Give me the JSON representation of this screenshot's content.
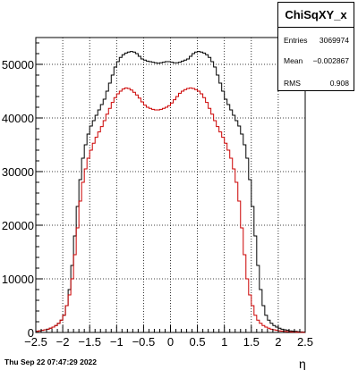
{
  "timestamp": "Thu Sep 22 07:47:29 2022",
  "stats": {
    "title": "ChiSqXY_x",
    "rows": [
      {
        "label": "Entries",
        "value": "3069974"
      },
      {
        "label": "Mean",
        "value": "−0.002867"
      },
      {
        "label": "RMS",
        "value": "0.908"
      }
    ]
  },
  "chart_data": {
    "type": "step-histogram",
    "xlabel": "η",
    "xlim": [
      -2.5,
      2.5
    ],
    "ylim": [
      0,
      55000
    ],
    "bin_width": 0.05,
    "x_ticks": [
      "−2.5",
      "−2",
      "−1.5",
      "−1",
      "−0.5",
      "0",
      "0.5",
      "1",
      "1.5",
      "2",
      "2.5"
    ],
    "x_tick_values": [
      -2.5,
      -2,
      -1.5,
      -1,
      -0.5,
      0,
      0.5,
      1,
      1.5,
      2,
      2.5
    ],
    "y_ticks": [
      "0",
      "10000",
      "20000",
      "30000",
      "40000",
      "50000"
    ],
    "y_tick_values": [
      0,
      10000,
      20000,
      30000,
      40000,
      50000
    ],
    "grid": true,
    "colors": {
      "black": "#000000",
      "red": "#cc0000"
    },
    "series": [
      {
        "color": "#000000",
        "values": [
          200,
          300,
          400,
          500,
          600,
          800,
          1000,
          1300,
          1700,
          2300,
          3200,
          5000,
          8000,
          12500,
          18000,
          23500,
          28500,
          32500,
          35000,
          37000,
          38500,
          39500,
          40500,
          41500,
          42500,
          43500,
          45000,
          46500,
          48000,
          49500,
          50500,
          51300,
          51800,
          52100,
          52300,
          52400,
          52300,
          52000,
          51500,
          51000,
          50800,
          50600,
          50500,
          50400,
          50300,
          50200,
          50300,
          50400,
          50500,
          50500,
          50400,
          50300,
          50300,
          50400,
          50600,
          50800,
          51000,
          51500,
          52000,
          52300,
          52400,
          52300,
          52100,
          51800,
          51300,
          50500,
          49500,
          48000,
          46500,
          45000,
          43500,
          42500,
          41500,
          40500,
          39500,
          38500,
          37000,
          35000,
          32500,
          28500,
          23500,
          18000,
          12500,
          8000,
          5000,
          3200,
          2300,
          1700,
          1300,
          1000,
          800,
          600,
          500,
          400,
          300,
          250,
          200,
          150,
          100,
          80
        ]
      },
      {
        "color": "#cc0000",
        "values": [
          200,
          300,
          400,
          500,
          600,
          800,
          1000,
          1300,
          1700,
          2300,
          3200,
          5000,
          7000,
          10000,
          14500,
          19500,
          24500,
          28000,
          30500,
          32500,
          34000,
          35300,
          36400,
          37400,
          38400,
          39500,
          40700,
          41800,
          42900,
          43800,
          44500,
          45000,
          45400,
          45600,
          45500,
          45200,
          44800,
          44300,
          43700,
          43000,
          42400,
          42000,
          41800,
          41600,
          41500,
          41500,
          41600,
          41800,
          42000,
          42300,
          42800,
          43400,
          44000,
          44600,
          45000,
          45300,
          45500,
          45600,
          45500,
          45300,
          45000,
          44500,
          43800,
          42900,
          41800,
          40700,
          39500,
          38400,
          37400,
          36400,
          35300,
          34000,
          32500,
          30500,
          28000,
          24500,
          19500,
          14500,
          10000,
          7000,
          5000,
          3200,
          2300,
          1700,
          1300,
          1000,
          800,
          600,
          500,
          400,
          300,
          250,
          200,
          150,
          100,
          80,
          60,
          40,
          30,
          20
        ]
      }
    ]
  }
}
